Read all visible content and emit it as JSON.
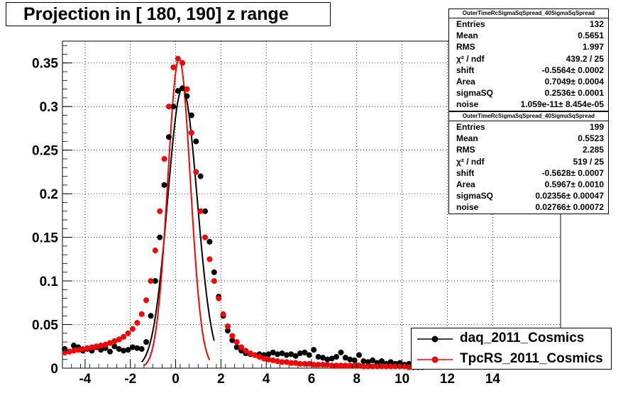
{
  "title": "Projection in [ 180, 190] z range",
  "stats_boxes": [
    {
      "header": "OuterTimeRcSigmaSqSpread_40SigmaSqSpread",
      "rows": [
        {
          "label": "Entries",
          "value": "132"
        },
        {
          "label": "Mean",
          "value": "0.5651"
        },
        {
          "label": "RMS",
          "value": "1.997"
        },
        {
          "label": "χ² / ndf",
          "value": "439.2 / 25"
        },
        {
          "label": "shift",
          "value": "-0.5564± 0.0002"
        },
        {
          "label": "Area",
          "value": "0.7049± 0.0004"
        },
        {
          "label": "sigmaSQ",
          "value": "0.2536± 0.0001"
        },
        {
          "label": "noise",
          "value": "1.059e-11± 8.454e-05"
        }
      ]
    },
    {
      "header": "OuterTimeRcSigmaSqSpread_40SigmaSqSpread",
      "rows": [
        {
          "label": "Entries",
          "value": "199"
        },
        {
          "label": "Mean",
          "value": "0.5523"
        },
        {
          "label": "RMS",
          "value": "2.285"
        },
        {
          "label": "χ² / ndf",
          "value": "519 / 25"
        },
        {
          "label": "shift",
          "value": "-0.5628± 0.0007"
        },
        {
          "label": "Area",
          "value": "0.5967± 0.0010"
        },
        {
          "label": "sigmaSQ",
          "value": "0.02356± 0.00047"
        },
        {
          "label": "noise",
          "value": "0.02766± 0.00072"
        }
      ]
    }
  ],
  "legend": [
    {
      "label": "daq_2011_Cosmics",
      "color": "#000000"
    },
    {
      "label": "TpcRS_2011_Cosmics",
      "color": "#ff0000"
    }
  ],
  "chart_data": {
    "type": "scatter",
    "title": "Projection in [ 180, 190] z range",
    "xlabel": "",
    "ylabel": "",
    "xlim": [
      -5,
      17
    ],
    "ylim": [
      0,
      0.375
    ],
    "grid": true,
    "x_ticks": [
      -4,
      -2,
      0,
      2,
      4,
      6,
      8,
      10,
      12,
      14
    ],
    "y_ticks": [
      0,
      0.05,
      0.1,
      0.15,
      0.2,
      0.25,
      0.3,
      0.35
    ],
    "y_tick_labels": [
      "0",
      "0.05",
      "0.1",
      "0.15",
      "0.2",
      "0.25",
      "0.3",
      "0.35"
    ],
    "series": [
      {
        "name": "daq_2011_Cosmics",
        "color": "#000000",
        "x": [
          -4.9,
          -4.7,
          -4.5,
          -4.3,
          -4.1,
          -3.9,
          -3.7,
          -3.5,
          -3.3,
          -3.1,
          -2.9,
          -2.7,
          -2.5,
          -2.3,
          -2.1,
          -1.9,
          -1.7,
          -1.5,
          -1.3,
          -1.1,
          -0.9,
          -0.7,
          -0.5,
          -0.3,
          -0.1,
          0.1,
          0.3,
          0.5,
          0.7,
          0.9,
          1.1,
          1.3,
          1.5,
          1.7,
          1.9,
          2.1,
          2.3,
          2.5,
          2.7,
          2.9,
          3.1,
          3.3,
          3.5,
          3.7,
          3.9,
          4.1,
          4.3,
          4.5,
          4.7,
          4.9,
          5.1,
          5.3,
          5.5,
          5.7,
          5.9,
          6.1,
          6.3,
          6.5,
          6.7,
          6.9,
          7.1,
          7.3,
          7.5,
          7.7,
          7.9,
          8.1,
          8.3,
          8.5,
          8.7,
          8.9,
          9.1,
          9.3,
          9.5,
          9.7,
          9.9,
          10.1,
          10.3,
          10.5,
          10.7,
          10.9
        ],
        "y": [
          0.022,
          0.019,
          0.026,
          0.024,
          0.02,
          0.022,
          0.02,
          0.024,
          0.021,
          0.023,
          0.019,
          0.025,
          0.022,
          0.02,
          0.021,
          0.024,
          0.023,
          0.022,
          0.03,
          0.06,
          0.1,
          0.15,
          0.21,
          0.265,
          0.3,
          0.318,
          0.321,
          0.312,
          0.29,
          0.26,
          0.22,
          0.18,
          0.145,
          0.11,
          0.082,
          0.06,
          0.043,
          0.032,
          0.024,
          0.02,
          0.017,
          0.016,
          0.015,
          0.016,
          0.015,
          0.016,
          0.018,
          0.016,
          0.017,
          0.015,
          0.016,
          0.014,
          0.017,
          0.018,
          0.015,
          0.021,
          0.013,
          0.012,
          0.01,
          0.011,
          0.013,
          0.018,
          0.012,
          0.01,
          0.009,
          0.015,
          0.008,
          0.007,
          0.009,
          0.006,
          0.008,
          0.005,
          0.007,
          0.005,
          0.006,
          0.004,
          0.005,
          0.004,
          0.003,
          0.004
        ]
      },
      {
        "name": "TpcRS_2011_Cosmics",
        "color": "#ff0000",
        "x": [
          -4.9,
          -4.7,
          -4.5,
          -4.3,
          -4.1,
          -3.9,
          -3.7,
          -3.5,
          -3.3,
          -3.1,
          -2.9,
          -2.7,
          -2.5,
          -2.3,
          -2.1,
          -1.9,
          -1.7,
          -1.5,
          -1.3,
          -1.1,
          -0.9,
          -0.7,
          -0.5,
          -0.3,
          -0.1,
          0.1,
          0.3,
          0.5,
          0.7,
          0.9,
          1.1,
          1.3,
          1.5,
          1.7,
          1.9,
          2.1,
          2.3,
          2.5,
          2.7,
          2.9,
          3.1,
          3.3,
          3.5,
          3.7,
          3.9,
          4.1,
          4.3,
          4.5,
          4.7,
          4.9,
          5.1,
          5.3,
          5.5,
          5.7,
          5.9,
          6.1,
          6.3,
          6.5,
          6.7,
          6.9,
          7.1,
          7.3,
          7.5,
          7.7,
          7.9,
          8.1,
          8.3,
          8.5,
          8.7,
          8.9,
          9.1,
          9.3,
          9.5,
          9.7,
          9.9,
          10.1,
          10.3,
          10.5,
          10.7,
          10.9
        ],
        "y": [
          0.018,
          0.019,
          0.02,
          0.021,
          0.022,
          0.023,
          0.024,
          0.025,
          0.026,
          0.027,
          0.029,
          0.031,
          0.033,
          0.036,
          0.04,
          0.045,
          0.052,
          0.062,
          0.078,
          0.1,
          0.135,
          0.18,
          0.24,
          0.3,
          0.345,
          0.355,
          0.35,
          0.32,
          0.27,
          0.225,
          0.18,
          0.15,
          0.125,
          0.1,
          0.08,
          0.062,
          0.048,
          0.037,
          0.03,
          0.024,
          0.02,
          0.017,
          0.015,
          0.013,
          0.011,
          0.01,
          0.009,
          0.008,
          0.007,
          0.007,
          0.006,
          0.006,
          0.005,
          0.005,
          0.005,
          0.004,
          0.004,
          0.004,
          0.004,
          0.003,
          0.003,
          0.003,
          0.003,
          0.003,
          0.003,
          0.003,
          0.002,
          0.002,
          0.002,
          0.002,
          0.002,
          0.002,
          0.002,
          0.002,
          0.002,
          0.002,
          0.001,
          0.001,
          0.001,
          0.001
        ]
      }
    ],
    "fit_curves": [
      {
        "series": "daq_2011_Cosmics",
        "color": "#000000",
        "peak": 0.321,
        "center": 0.3,
        "width": 0.65,
        "xmin": -1.5,
        "xmax": 1.7
      },
      {
        "series": "TpcRS_2011_Cosmics",
        "color": "#ff0000",
        "peak": 0.355,
        "center": 0.15,
        "width": 0.5,
        "xmin": -1.4,
        "xmax": 1.5
      }
    ]
  }
}
